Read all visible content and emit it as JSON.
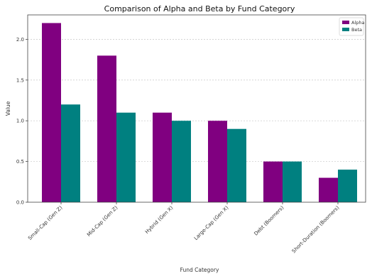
{
  "chart_data": {
    "type": "bar",
    "title": "Comparison of Alpha and Beta by Fund Category",
    "xlabel": "Fund Category",
    "ylabel": "Value",
    "categories": [
      "Small-Cap (Gen Z)",
      "Mid-Cap (Gen Z)",
      "Hybrid (Gen X)",
      "Large-Cap (Gen X)",
      "Debt (Boomers)",
      "Short-Duration (Boomers)"
    ],
    "series": [
      {
        "name": "Alpha",
        "color": "#800080",
        "values": [
          2.2,
          1.8,
          1.1,
          1.0,
          0.5,
          0.3
        ]
      },
      {
        "name": "Beta",
        "color": "#008080",
        "values": [
          1.2,
          1.1,
          1.0,
          0.9,
          0.5,
          0.4
        ]
      }
    ],
    "ylim": [
      0,
      2.3
    ],
    "yticks": [
      "0.0",
      "0.5",
      "1.0",
      "1.5",
      "2.0"
    ],
    "grid": "y-dashed",
    "legend_position": "top-right"
  }
}
